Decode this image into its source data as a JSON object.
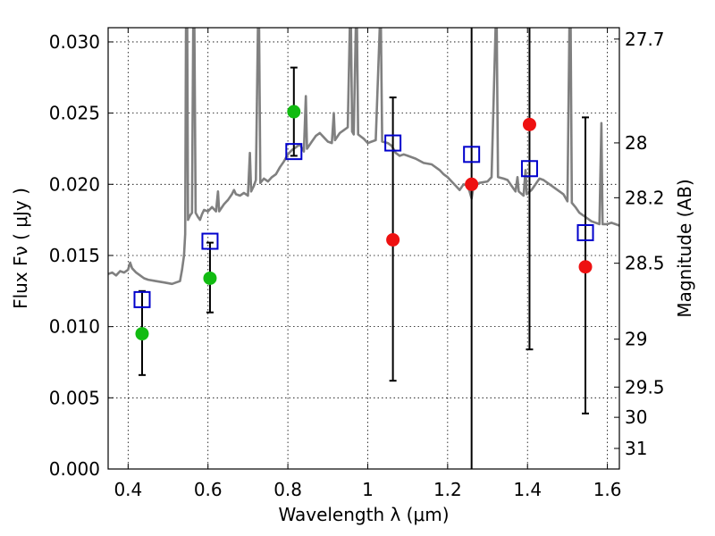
{
  "chart_data": {
    "type": "scatter",
    "title": "",
    "xlabel": "Wavelength  λ (μm)",
    "ylabel": "Flux  Fν  ( μJy )",
    "ylabel_right": "Magnitude (AB)",
    "xlim": [
      0.35,
      1.63
    ],
    "ylim": [
      0.0,
      0.031
    ],
    "x_ticks": [
      0.4,
      0.6,
      0.8,
      1.0,
      1.2,
      1.4,
      1.6
    ],
    "x_tick_labels": [
      "0.4",
      "0.6",
      "0.8",
      "1",
      "1.2",
      "1.4",
      "1.6"
    ],
    "y_ticks": [
      0.0,
      0.005,
      0.01,
      0.015,
      0.02,
      0.025,
      0.03
    ],
    "y_tick_labels": [
      "0.000",
      "0.005",
      "0.010",
      "0.015",
      "0.020",
      "0.025",
      "0.030"
    ],
    "right_ticks_mag": [
      27.7,
      28,
      28.2,
      28.5,
      29,
      29.5,
      30,
      31
    ],
    "right_tick_labels": [
      "27.7",
      "28",
      "28.2",
      "28.5",
      "29",
      "29.5",
      "30",
      "31"
    ],
    "grid": true,
    "colors": {
      "template": "#808080",
      "model": "#0000cc",
      "detection": "#11bb11",
      "upper": "#ee1111",
      "errorbar": "#000000"
    },
    "series": [
      {
        "kind": "template",
        "points": [
          [
            0.35,
            0.0137
          ],
          [
            0.36,
            0.0138
          ],
          [
            0.37,
            0.0136
          ],
          [
            0.38,
            0.0139
          ],
          [
            0.39,
            0.0138
          ],
          [
            0.4,
            0.014
          ],
          [
            0.405,
            0.0145
          ],
          [
            0.41,
            0.0141
          ],
          [
            0.42,
            0.0138
          ],
          [
            0.43,
            0.0136
          ],
          [
            0.44,
            0.0134
          ],
          [
            0.45,
            0.0133
          ],
          [
            0.47,
            0.0132
          ],
          [
            0.49,
            0.0131
          ],
          [
            0.51,
            0.013
          ],
          [
            0.52,
            0.0131
          ],
          [
            0.53,
            0.0132
          ],
          [
            0.535,
            0.014
          ],
          [
            0.54,
            0.015
          ],
          [
            0.543,
            0.0165
          ],
          [
            0.545,
            0.031
          ],
          [
            0.548,
            0.031
          ],
          [
            0.55,
            0.0175
          ],
          [
            0.555,
            0.0178
          ],
          [
            0.56,
            0.018
          ],
          [
            0.563,
            0.031
          ],
          [
            0.566,
            0.031
          ],
          [
            0.569,
            0.018
          ],
          [
            0.575,
            0.0177
          ],
          [
            0.58,
            0.0175
          ],
          [
            0.585,
            0.0179
          ],
          [
            0.59,
            0.0182
          ],
          [
            0.6,
            0.0181
          ],
          [
            0.61,
            0.0184
          ],
          [
            0.62,
            0.0181
          ],
          [
            0.625,
            0.0195
          ],
          [
            0.628,
            0.0181
          ],
          [
            0.64,
            0.0186
          ],
          [
            0.65,
            0.0189
          ],
          [
            0.66,
            0.0193
          ],
          [
            0.665,
            0.0196
          ],
          [
            0.67,
            0.0193
          ],
          [
            0.68,
            0.0192
          ],
          [
            0.69,
            0.0194
          ],
          [
            0.7,
            0.0192
          ],
          [
            0.705,
            0.0222
          ],
          [
            0.708,
            0.0195
          ],
          [
            0.715,
            0.0199
          ],
          [
            0.72,
            0.0203
          ],
          [
            0.725,
            0.031
          ],
          [
            0.728,
            0.031
          ],
          [
            0.731,
            0.0201
          ],
          [
            0.74,
            0.0204
          ],
          [
            0.75,
            0.0202
          ],
          [
            0.76,
            0.0205
          ],
          [
            0.77,
            0.0207
          ],
          [
            0.78,
            0.0212
          ],
          [
            0.79,
            0.0216
          ],
          [
            0.8,
            0.0221
          ],
          [
            0.81,
            0.0224
          ],
          [
            0.82,
            0.0226
          ],
          [
            0.83,
            0.0228
          ],
          [
            0.84,
            0.0223
          ],
          [
            0.845,
            0.0262
          ],
          [
            0.848,
            0.0225
          ],
          [
            0.86,
            0.023
          ],
          [
            0.87,
            0.0234
          ],
          [
            0.88,
            0.0236
          ],
          [
            0.89,
            0.0233
          ],
          [
            0.9,
            0.023
          ],
          [
            0.91,
            0.0229
          ],
          [
            0.915,
            0.025
          ],
          [
            0.918,
            0.0231
          ],
          [
            0.93,
            0.0236
          ],
          [
            0.94,
            0.0238
          ],
          [
            0.95,
            0.024
          ],
          [
            0.955,
            0.031
          ],
          [
            0.958,
            0.031
          ],
          [
            0.961,
            0.0237
          ],
          [
            0.965,
            0.0235
          ],
          [
            0.97,
            0.031
          ],
          [
            0.973,
            0.031
          ],
          [
            0.976,
            0.0235
          ],
          [
            0.99,
            0.0232
          ],
          [
            1.0,
            0.0229
          ],
          [
            1.01,
            0.023
          ],
          [
            1.02,
            0.0231
          ],
          [
            1.03,
            0.031
          ],
          [
            1.033,
            0.031
          ],
          [
            1.036,
            0.023
          ],
          [
            1.05,
            0.0229
          ],
          [
            1.06,
            0.0227
          ],
          [
            1.07,
            0.0222
          ],
          [
            1.08,
            0.022
          ],
          [
            1.09,
            0.0221
          ],
          [
            1.1,
            0.022
          ],
          [
            1.12,
            0.0218
          ],
          [
            1.14,
            0.0215
          ],
          [
            1.16,
            0.0214
          ],
          [
            1.18,
            0.021
          ],
          [
            1.19,
            0.0207
          ],
          [
            1.2,
            0.0205
          ],
          [
            1.21,
            0.0202
          ],
          [
            1.22,
            0.0199
          ],
          [
            1.23,
            0.0196
          ],
          [
            1.24,
            0.02
          ],
          [
            1.25,
            0.0199
          ],
          [
            1.255,
            0.0195
          ],
          [
            1.26,
            0.019
          ],
          [
            1.265,
            0.0199
          ],
          [
            1.28,
            0.0201
          ],
          [
            1.3,
            0.0202
          ],
          [
            1.31,
            0.0205
          ],
          [
            1.32,
            0.031
          ],
          [
            1.323,
            0.031
          ],
          [
            1.326,
            0.0205
          ],
          [
            1.34,
            0.0204
          ],
          [
            1.35,
            0.0203
          ],
          [
            1.36,
            0.0199
          ],
          [
            1.37,
            0.0195
          ],
          [
            1.375,
            0.0205
          ],
          [
            1.378,
            0.0195
          ],
          [
            1.39,
            0.0192
          ],
          [
            1.395,
            0.021
          ],
          [
            1.398,
            0.0193
          ],
          [
            1.41,
            0.0196
          ],
          [
            1.43,
            0.0204
          ],
          [
            1.44,
            0.0203
          ],
          [
            1.45,
            0.0201
          ],
          [
            1.47,
            0.0197
          ],
          [
            1.49,
            0.0193
          ],
          [
            1.5,
            0.0188
          ],
          [
            1.505,
            0.031
          ],
          [
            1.508,
            0.031
          ],
          [
            1.511,
            0.0187
          ],
          [
            1.52,
            0.0184
          ],
          [
            1.53,
            0.018
          ],
          [
            1.54,
            0.0178
          ],
          [
            1.55,
            0.0176
          ],
          [
            1.56,
            0.0174
          ],
          [
            1.57,
            0.0173
          ],
          [
            1.58,
            0.0172
          ],
          [
            1.585,
            0.0243
          ],
          [
            1.588,
            0.0172
          ],
          [
            1.6,
            0.0172
          ],
          [
            1.61,
            0.0173
          ],
          [
            1.62,
            0.0172
          ],
          [
            1.63,
            0.0171
          ]
        ]
      },
      {
        "kind": "model",
        "points": [
          [
            0.435,
            0.0119
          ],
          [
            0.605,
            0.016
          ],
          [
            0.815,
            0.0223
          ],
          [
            1.063,
            0.0229
          ],
          [
            1.26,
            0.0221
          ],
          [
            1.405,
            0.0211
          ],
          [
            1.545,
            0.0166
          ]
        ]
      },
      {
        "kind": "detection",
        "points": [
          {
            "x": 0.435,
            "y": 0.0095,
            "lo": 0.0066,
            "hi": 0.0125
          },
          {
            "x": 0.605,
            "y": 0.0134,
            "lo": 0.011,
            "hi": 0.0159
          },
          {
            "x": 0.815,
            "y": 0.0251,
            "lo": 0.022,
            "hi": 0.0282
          }
        ]
      },
      {
        "kind": "upper",
        "points": [
          {
            "x": 1.063,
            "y": 0.0161,
            "lo": 0.0062,
            "hi": 0.0261
          },
          {
            "x": 1.26,
            "y": 0.02,
            "lo": 0.0,
            "hi": 0.031
          },
          {
            "x": 1.405,
            "y": 0.0242,
            "lo": 0.0084,
            "hi": 0.031
          },
          {
            "x": 1.545,
            "y": 0.0142,
            "lo": 0.0039,
            "hi": 0.0247
          }
        ]
      }
    ]
  }
}
